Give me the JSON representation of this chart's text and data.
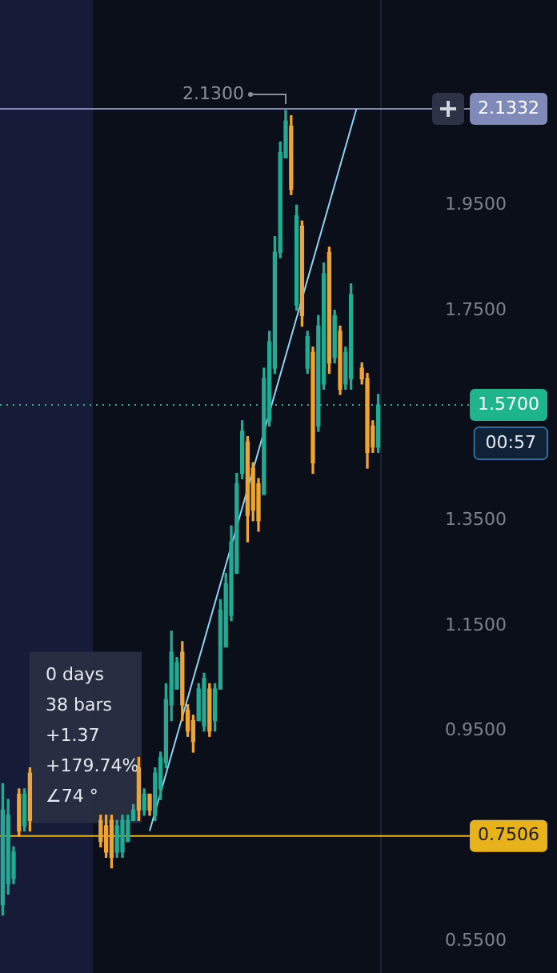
{
  "chart_data": {
    "type": "candlestick",
    "categories": [
      null,
      null,
      null,
      null,
      null,
      null,
      null,
      null,
      null,
      null,
      null,
      null,
      null,
      null,
      null,
      null,
      null,
      null,
      null,
      null,
      null,
      null,
      null,
      null,
      null,
      null,
      null,
      null,
      null,
      null,
      null,
      null,
      null,
      null,
      null,
      null,
      null,
      null,
      null,
      null,
      null,
      null,
      null,
      null,
      null,
      null,
      null,
      null,
      null,
      null,
      null,
      null,
      null,
      null,
      null,
      null,
      null,
      null,
      null,
      null,
      null,
      null,
      null,
      null,
      null,
      null,
      null,
      null,
      null,
      null
    ],
    "ohlc": [
      [
        0.62,
        0.85,
        0.6,
        0.8
      ],
      [
        0.66,
        0.82,
        0.64,
        0.79
      ],
      [
        0.67,
        0.73,
        0.66,
        0.72
      ],
      [
        0.83,
        0.84,
        0.75,
        0.76
      ],
      [
        0.77,
        0.84,
        0.76,
        0.83
      ],
      [
        0.87,
        0.88,
        0.76,
        0.78
      ],
      null,
      null,
      null,
      null,
      null,
      null,
      null,
      null,
      null,
      null,
      null,
      null,
      [
        0.78,
        0.79,
        0.73,
        0.74
      ],
      [
        0.77,
        0.79,
        0.71,
        0.72
      ],
      [
        0.78,
        0.79,
        0.69,
        0.71
      ],
      [
        0.72,
        0.78,
        0.71,
        0.77
      ],
      [
        0.72,
        0.79,
        0.71,
        0.78
      ],
      [
        0.74,
        0.79,
        0.74,
        0.78
      ],
      [
        0.78,
        0.81,
        0.78,
        0.8
      ],
      [
        0.88,
        0.9,
        0.78,
        0.8
      ],
      [
        0.8,
        0.84,
        0.79,
        0.83
      ],
      [
        0.83,
        0.83,
        0.79,
        0.8
      ],
      [
        0.79,
        0.88,
        0.78,
        0.87
      ],
      [
        0.84,
        0.91,
        0.82,
        0.9
      ],
      [
        0.89,
        1.04,
        0.88,
        1.01
      ],
      [
        1.0,
        1.14,
        0.97,
        1.1
      ],
      [
        1.03,
        1.09,
        1.03,
        1.08
      ],
      [
        1.1,
        1.12,
        0.97,
        1.0
      ],
      [
        0.99,
        1.0,
        0.94,
        0.95
      ],
      [
        0.97,
        0.98,
        0.91,
        0.93
      ],
      [
        0.97,
        1.04,
        0.97,
        1.03
      ],
      [
        0.96,
        1.06,
        0.95,
        1.05
      ],
      [
        1.03,
        1.04,
        0.94,
        0.95
      ],
      [
        0.97,
        1.04,
        0.95,
        1.03
      ],
      [
        1.03,
        1.2,
        1.03,
        1.18
      ],
      [
        1.11,
        1.25,
        1.11,
        1.23
      ],
      [
        1.17,
        1.34,
        1.16,
        1.31
      ],
      [
        1.25,
        1.44,
        1.25,
        1.42
      ],
      [
        1.44,
        1.54,
        1.43,
        1.52
      ],
      [
        1.5,
        1.51,
        1.31,
        1.36
      ],
      [
        1.45,
        1.46,
        1.35,
        1.37
      ],
      [
        1.42,
        1.43,
        1.33,
        1.35
      ],
      [
        1.4,
        1.64,
        1.4,
        1.62
      ],
      [
        1.54,
        1.71,
        1.53,
        1.69
      ],
      [
        1.64,
        1.89,
        1.63,
        1.86
      ],
      [
        1.86,
        2.07,
        1.85,
        2.05
      ],
      [
        2.04,
        2.13,
        2.04,
        2.11
      ],
      [
        2.1,
        2.12,
        1.97,
        1.98
      ],
      [
        1.76,
        1.95,
        1.75,
        1.93
      ],
      [
        1.91,
        1.92,
        1.72,
        1.74
      ],
      [
        1.64,
        1.71,
        1.63,
        1.7
      ],
      [
        1.67,
        1.68,
        1.44,
        1.46
      ],
      [
        1.53,
        1.74,
        1.52,
        1.72
      ],
      [
        1.61,
        1.84,
        1.6,
        1.82
      ],
      [
        1.86,
        1.87,
        1.63,
        1.65
      ],
      [
        1.66,
        1.75,
        1.65,
        1.74
      ],
      [
        1.71,
        1.72,
        1.59,
        1.6
      ],
      [
        1.61,
        1.68,
        1.6,
        1.67
      ],
      [
        1.62,
        1.8,
        1.6,
        1.78
      ],
      null,
      [
        1.64,
        1.65,
        1.61,
        1.62
      ],
      [
        1.62,
        1.63,
        1.45,
        1.48
      ],
      [
        1.53,
        1.54,
        1.48,
        1.49
      ],
      [
        1.49,
        1.59,
        1.48,
        1.57
      ]
    ],
    "colors": [
      "#22ab94",
      "#22ab94",
      "#22ab94",
      "#f0a431",
      "#22ab94",
      "#f0a431",
      null,
      null,
      null,
      null,
      null,
      null,
      null,
      null,
      null,
      null,
      null,
      null,
      "#f0a431",
      "#f0a431",
      "#f0a431",
      "#22ab94",
      "#22ab94",
      "#22ab94",
      "#22ab94",
      "#f0a431",
      "#22ab94",
      "#f0a431",
      "#22ab94",
      "#22ab94",
      "#22ab94",
      "#22ab94",
      "#22ab94",
      "#f0a431",
      "#f0a431",
      "#f0a431",
      "#22ab94",
      "#22ab94",
      "#f0a431",
      "#22ab94",
      "#22ab94",
      "#22ab94",
      "#22ab94",
      "#22ab94",
      "#22ab94",
      "#f0a431",
      "#f0a431",
      "#f0a431",
      "#22ab94",
      "#22ab94",
      "#22ab94",
      "#22ab94",
      "#22ab94",
      "#f0a431",
      "#22ab94",
      "#f0a431",
      "#22ab94",
      "#f0a431",
      "#22ab94",
      "#22ab94",
      "#f0a431",
      "#22ab94",
      "#f0a431",
      "#22ab94",
      "#22ab94",
      null,
      "#f0a431",
      "#f0a431",
      "#f0a431",
      "#22ab94"
    ],
    "series": [
      {
        "type": "line",
        "values": [
          null,
          null,
          null,
          null,
          null,
          null,
          null,
          null,
          null,
          null,
          null,
          null,
          null,
          null,
          null,
          null,
          null,
          null,
          null,
          null,
          null,
          null,
          null,
          null,
          null,
          null,
          null,
          0.76,
          null,
          null,
          null,
          null,
          null,
          null,
          null,
          null,
          null,
          null,
          null,
          null,
          null,
          null,
          null,
          null,
          null,
          null,
          null,
          null,
          null,
          null,
          null,
          null,
          null,
          null,
          null,
          null,
          null,
          null,
          null,
          null,
          null,
          null,
          null,
          null,
          null,
          2.1332,
          null,
          null,
          null,
          null
        ],
        "color": "#8fd3f4"
      }
    ],
    "ylim": [
      0.49,
      2.34
    ],
    "yticks": [
      {
        "value": 0.55,
        "label": "0.5500"
      },
      {
        "value": 0.95,
        "label": "0.9500"
      },
      {
        "value": 1.15,
        "label": "1.1500"
      },
      {
        "value": 1.35,
        "label": "1.3500"
      },
      {
        "value": 1.75,
        "label": "1.7500"
      },
      {
        "value": 1.95,
        "label": "1.9500"
      }
    ],
    "tick_labels": "y",
    "ref_lines": [
      {
        "axis": "y",
        "value": 2.1332,
        "label": "2.1332",
        "color": "#7f8ab8",
        "line_style": "solid"
      },
      {
        "axis": "y",
        "value": 1.57,
        "label": "1.5700",
        "color": "#1fb58c",
        "line_style": "dotted"
      },
      {
        "axis": "y",
        "value": 0.7506,
        "label": "0.7506",
        "color": "#e8b21a",
        "line_style": "solid"
      }
    ],
    "annotations": [
      {
        "text": "2.1300",
        "y": 2.13
      },
      "00:57",
      "0 days",
      "38 bars",
      "+1.37",
      "+179.74%",
      "∠74 °"
    ]
  }
}
